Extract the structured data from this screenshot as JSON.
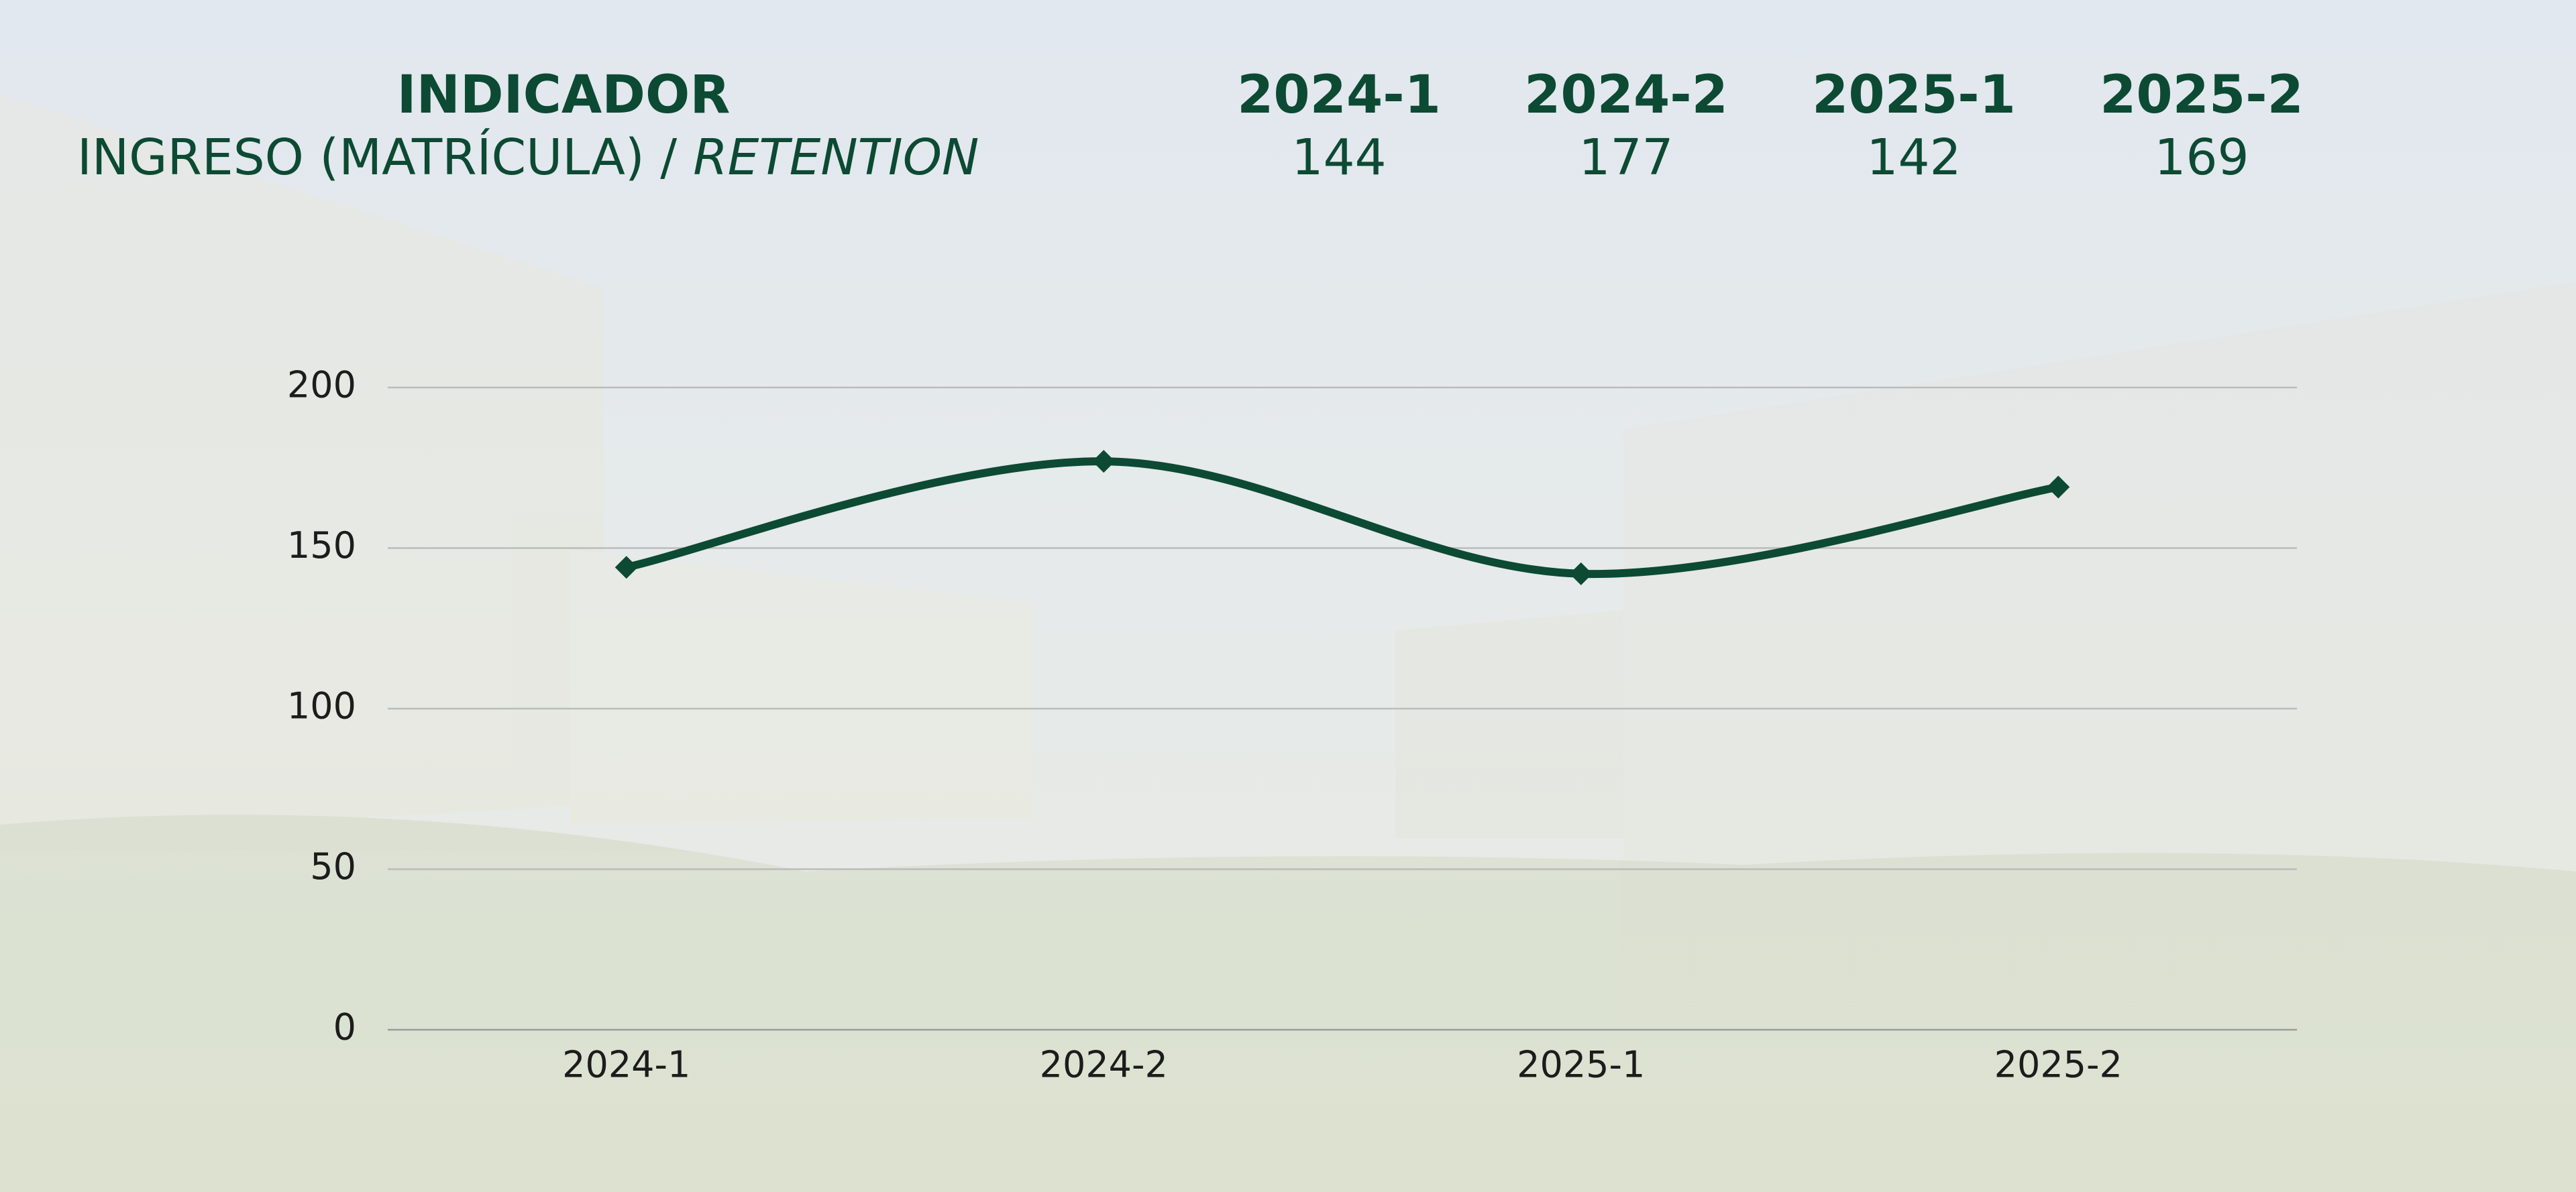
{
  "header": {
    "label": "INDICADOR"
  },
  "row": {
    "label": "INGRESO (MATRÍCULA) /",
    "label_italic": "RETENTION"
  },
  "chart_data": {
    "type": "line",
    "categories": [
      "2024-1",
      "2024-2",
      "2025-1",
      "2025-2"
    ],
    "values": [
      144,
      177,
      142,
      169
    ],
    "color": "#0c4a33",
    "ylim": [
      0,
      200
    ],
    "yticks": [
      0,
      50,
      100,
      150,
      200
    ],
    "grid": true
  }
}
